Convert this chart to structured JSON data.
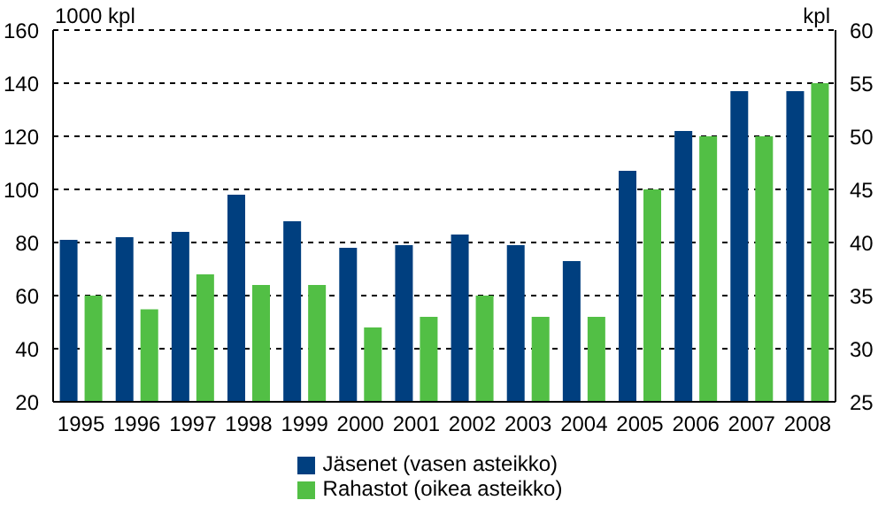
{
  "chart_data": {
    "type": "bar",
    "categories": [
      "1995",
      "1996",
      "1997",
      "1998",
      "1999",
      "2000",
      "2001",
      "2002",
      "2003",
      "2004",
      "2005",
      "2006",
      "2007",
      "2008"
    ],
    "ylabel": "1000 kpl",
    "y2label": "kpl",
    "series": [
      {
        "name": "Jäsenet (vasen asteikko)",
        "color": "#003f7f",
        "values": [
          81,
          82,
          84,
          98,
          88,
          78,
          79,
          83,
          79,
          73,
          107,
          122,
          137,
          137
        ]
      },
      {
        "name": "Rahastot (oikea asteikko)",
        "color": "#52bf45",
        "axis": "y2",
        "values": [
          35,
          33.7,
          37,
          36,
          36,
          32,
          33,
          35,
          33,
          33,
          45,
          50,
          50,
          55
        ]
      }
    ],
    "ylim": [
      20,
      160
    ],
    "yticks": [
      20,
      40,
      60,
      80,
      100,
      120,
      140,
      160
    ],
    "y2lim": [
      25,
      60
    ],
    "y2ticks": [
      25,
      30,
      35,
      40,
      45,
      50,
      55,
      60
    ],
    "grid": "y",
    "legend": "bottom"
  }
}
